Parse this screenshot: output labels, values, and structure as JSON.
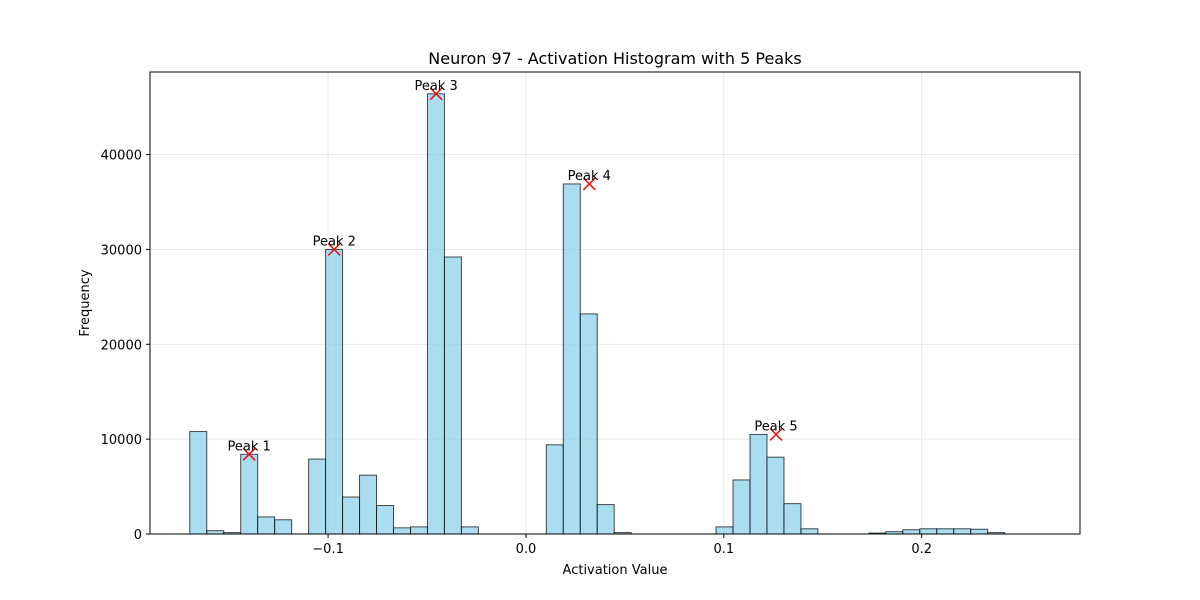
{
  "chart_data": {
    "type": "bar",
    "title": "Neuron 97 - Activation Histogram with 5 Peaks",
    "xlabel": "Activation Value",
    "ylabel": "Frequency",
    "xlim": [
      -0.19,
      0.28
    ],
    "ylim": [
      0,
      48700
    ],
    "xticks": [
      {
        "value": -0.1,
        "label": "−0.1"
      },
      {
        "value": 0.0,
        "label": "0.0"
      },
      {
        "value": 0.1,
        "label": "0.1"
      },
      {
        "value": 0.2,
        "label": "0.2"
      }
    ],
    "yticks": [
      {
        "value": 0,
        "label": "0"
      },
      {
        "value": 10000,
        "label": "10000"
      },
      {
        "value": 20000,
        "label": "20000"
      },
      {
        "value": 30000,
        "label": "30000"
      },
      {
        "value": 40000,
        "label": "40000"
      }
    ],
    "grid": true,
    "bar_color": "#87ceeb",
    "marker_color": "#e31a1c",
    "bin_start": -0.1699,
    "bin_width": 0.00858,
    "counts": [
      10800,
      350,
      150,
      8400,
      1800,
      1500,
      0,
      7900,
      30000,
      3900,
      6200,
      3000,
      650,
      750,
      46400,
      29200,
      750,
      0,
      0,
      0,
      0,
      9400,
      36900,
      23200,
      3100,
      150,
      0,
      0,
      0,
      0,
      0,
      750,
      5700,
      10500,
      8100,
      3200,
      550,
      0,
      0,
      0,
      100,
      250,
      450,
      550,
      550,
      550,
      500,
      150
    ],
    "peaks": [
      {
        "label": "Peak 1",
        "x": -0.1399,
        "y": 8400
      },
      {
        "label": "Peak 2",
        "x": -0.0969,
        "y": 30000
      },
      {
        "label": "Peak 3",
        "x": -0.0454,
        "y": 46400
      },
      {
        "label": "Peak 4",
        "x": 0.032,
        "y": 36900
      },
      {
        "label": "Peak 5",
        "x": 0.1264,
        "y": 10500
      }
    ]
  }
}
